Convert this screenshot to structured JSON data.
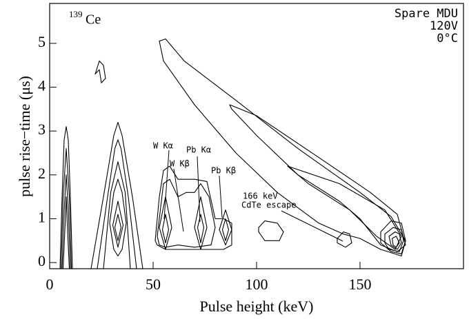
{
  "chart_data": {
    "type": "contour",
    "x_label": "Pulse height (keV)",
    "y_label": "pulse rise−time (μs)",
    "isotope_mass": "139",
    "isotope": "Ce",
    "corner_text": [
      "Spare MDU",
      "120V",
      "0°C"
    ],
    "annotations": [
      "W Kα",
      "W Kβ",
      "Pb Kα",
      "Pb Kβ",
      "166 keV",
      "CdTe escape"
    ],
    "xlim": [
      0,
      200
    ],
    "xticks": [
      0,
      50,
      100,
      150
    ],
    "ylim": [
      -0.14,
      5.91
    ],
    "yticks": [
      0,
      1,
      2,
      3,
      4,
      5
    ],
    "color": "#000000",
    "contours": [
      {
        "x": [
          53,
          56,
          65,
          90,
          120,
          150,
          165,
          172,
          170,
          160,
          150,
          142,
          130,
          110,
          90,
          70,
          55
        ],
        "y": [
          5.05,
          5.1,
          4.6,
          3.7,
          2.6,
          1.6,
          1.05,
          0.5,
          0.15,
          0.3,
          0.55,
          0.65,
          0.9,
          1.6,
          2.5,
          3.6,
          4.6
        ]
      },
      {
        "x": [
          87,
          100,
          130,
          155,
          168,
          172,
          168,
          160,
          150,
          140,
          120,
          100,
          88
        ],
        "y": [
          3.6,
          3.35,
          2.4,
          1.6,
          1.1,
          0.4,
          0.25,
          0.4,
          1.0,
          1.4,
          2.0,
          2.9,
          3.5
        ]
      },
      {
        "x": [
          115,
          140,
          162,
          170,
          167,
          158,
          145,
          125
        ],
        "y": [
          2.2,
          1.8,
          1.2,
          0.6,
          0.3,
          0.6,
          1.2,
          1.8
        ]
      },
      {
        "x": [
          160,
          165,
          170,
          172,
          170,
          165,
          160
        ],
        "y": [
          0.7,
          0.95,
          0.9,
          0.5,
          0.2,
          0.25,
          0.45
        ]
      },
      {
        "x": [
          162,
          166,
          170,
          171,
          169,
          164,
          162
        ],
        "y": [
          0.65,
          0.8,
          0.75,
          0.5,
          0.25,
          0.3,
          0.45
        ]
      },
      {
        "x": [
          164,
          167,
          169,
          170,
          168,
          165
        ],
        "y": [
          0.6,
          0.7,
          0.65,
          0.45,
          0.3,
          0.4
        ]
      },
      {
        "x": [
          165.5,
          167.5,
          169,
          167.5,
          166
        ],
        "y": [
          0.55,
          0.6,
          0.45,
          0.35,
          0.4
        ]
      },
      {
        "x": [
          139,
          142,
          145,
          146,
          143,
          139
        ],
        "y": [
          0.55,
          0.7,
          0.65,
          0.45,
          0.35,
          0.45
        ]
      },
      {
        "x": [
          101,
          104,
          110,
          113,
          111,
          104,
          101
        ],
        "y": [
          0.8,
          0.95,
          0.9,
          0.7,
          0.5,
          0.5,
          0.7
        ]
      },
      {
        "x": [
          22,
          24,
          26,
          27,
          25,
          24
        ],
        "y": [
          4.3,
          4.6,
          4.5,
          4.2,
          4.1,
          4.4
        ]
      },
      {
        "x": [
          5,
          6,
          7,
          8,
          9,
          10,
          11
        ],
        "y": [
          -0.14,
          1.5,
          2.8,
          3.1,
          2.8,
          1.5,
          -0.14
        ]
      },
      {
        "x": [
          5.5,
          6.5,
          8,
          9.5,
          10.5
        ],
        "y": [
          -0.14,
          1.5,
          2.6,
          1.5,
          -0.14
        ]
      },
      {
        "x": [
          6,
          7,
          8,
          9,
          10
        ],
        "y": [
          -0.14,
          1.2,
          2.0,
          1.2,
          -0.14
        ]
      },
      {
        "x": [
          6.5,
          7.5,
          8,
          8.5,
          9.5
        ],
        "y": [
          -0.14,
          0.9,
          1.5,
          0.9,
          -0.14
        ]
      },
      {
        "x": [
          20,
          26,
          31,
          33,
          35,
          40,
          45
        ],
        "y": [
          -0.14,
          1.5,
          2.9,
          3.2,
          2.9,
          1.5,
          -0.14
        ]
      },
      {
        "x": [
          23,
          28,
          31.5,
          33,
          34.5,
          38,
          42
        ],
        "y": [
          -0.14,
          1.5,
          2.6,
          2.8,
          2.6,
          1.5,
          -0.14
        ]
      },
      {
        "x": [
          26,
          29.5,
          33,
          36.5,
          39
        ],
        "y": [
          -0.14,
          1.6,
          2.3,
          1.6,
          -0.14
        ]
      },
      {
        "x": [
          29,
          31,
          33,
          35,
          37,
          35,
          33,
          31
        ],
        "y": [
          0.9,
          1.6,
          1.9,
          1.6,
          0.9,
          0.3,
          0.15,
          0.3
        ]
      },
      {
        "x": [
          30.5,
          33,
          35.5,
          33
        ],
        "y": [
          0.85,
          1.4,
          0.85,
          0.35
        ]
      },
      {
        "x": [
          31.5,
          33,
          34.5,
          33
        ],
        "y": [
          0.8,
          1.1,
          0.8,
          0.5
        ]
      },
      {
        "x": [
          51,
          53,
          55,
          58,
          62,
          70,
          76,
          80,
          84,
          88,
          88,
          84,
          70,
          56,
          52
        ],
        "y": [
          0.5,
          1.5,
          2.1,
          2.2,
          1.9,
          1.9,
          1.85,
          1.0,
          1.0,
          0.9,
          0.4,
          0.3,
          0.3,
          0.3,
          0.4
        ]
      },
      {
        "x": [
          52,
          55,
          58,
          62,
          66,
          70,
          73,
          77,
          80,
          78,
          70,
          62,
          56,
          53
        ],
        "y": [
          0.6,
          1.8,
          1.9,
          1.5,
          1.6,
          1.6,
          1.8,
          1.5,
          0.8,
          0.4,
          0.35,
          0.4,
          0.35,
          0.4
        ]
      },
      {
        "x": [
          53,
          56,
          59,
          56
        ],
        "y": [
          0.8,
          1.5,
          0.8,
          0.3
        ]
      },
      {
        "x": [
          54.5,
          56,
          57.5,
          56
        ],
        "y": [
          0.75,
          1.1,
          0.75,
          0.45
        ]
      },
      {
        "x": [
          70,
          73,
          76,
          73
        ],
        "y": [
          0.8,
          1.5,
          0.8,
          0.3
        ]
      },
      {
        "x": [
          71.5,
          73,
          74.5,
          73
        ],
        "y": [
          0.8,
          1.1,
          0.8,
          0.45
        ]
      },
      {
        "x": [
          82,
          85,
          88,
          85
        ],
        "y": [
          0.75,
          1.2,
          0.75,
          0.4
        ]
      },
      {
        "x": [
          83.5,
          85,
          86.5,
          85
        ],
        "y": [
          0.75,
          1.0,
          0.75,
          0.5
        ]
      }
    ]
  }
}
